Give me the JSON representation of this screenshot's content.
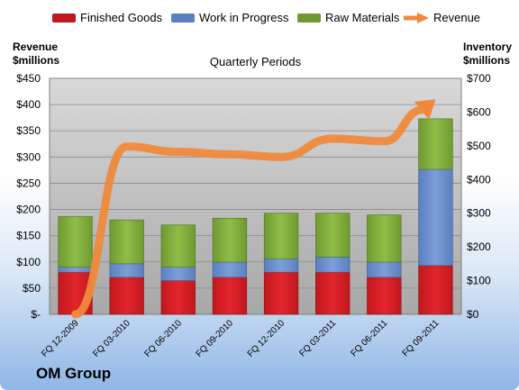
{
  "legend": {
    "finished_goods": "Finished Goods",
    "work_in_progress": "Work in Progress",
    "raw_materials": "Raw Materials",
    "revenue": "Revenue"
  },
  "y_left_title": [
    "Revenue",
    "$millions"
  ],
  "y_right_title": [
    "Inventory",
    "$millions"
  ],
  "brand": "OM Group",
  "colors": {
    "finished_goods": "#c0181d",
    "work_in_progress": "#5b7fbf",
    "raw_materials": "#6f9a30",
    "revenue": "#ef8a3c"
  },
  "chart_data": {
    "type": "bar",
    "title": "Quarterly Periods",
    "categories": [
      "FQ 12-2009",
      "FQ 03-2010",
      "FQ 06-2010",
      "FQ 09-2010",
      "FQ 12-2010",
      "FQ 03-2011",
      "FQ 06-2011",
      "FQ 09-2011"
    ],
    "series": [
      {
        "name": "Finished Goods",
        "axis": "right",
        "stack": "inventory",
        "values": [
          125,
          110,
          100,
          110,
          125,
          125,
          110,
          145
        ]
      },
      {
        "name": "Work in Progress",
        "axis": "right",
        "stack": "inventory",
        "values": [
          15,
          40,
          40,
          45,
          40,
          45,
          45,
          285
        ]
      },
      {
        "name": "Raw Materials",
        "axis": "right",
        "stack": "inventory",
        "values": [
          150,
          130,
          125,
          130,
          135,
          130,
          140,
          150
        ]
      },
      {
        "name": "Revenue",
        "type": "line",
        "axis": "left",
        "values": [
          0,
          320,
          310,
          305,
          300,
          335,
          330,
          410
        ]
      }
    ],
    "y_left": {
      "ylim": [
        0,
        450
      ],
      "ticks": [
        "$-",
        "$50",
        "$100",
        "$150",
        "$200",
        "$250",
        "$300",
        "$350",
        "$400",
        "$450"
      ]
    },
    "y_right": {
      "ylim": [
        0,
        700
      ],
      "ticks": [
        "$0",
        "$100",
        "$200",
        "$300",
        "$400",
        "$500",
        "$600",
        "$700"
      ]
    },
    "grid": true,
    "legend_position": "top"
  }
}
